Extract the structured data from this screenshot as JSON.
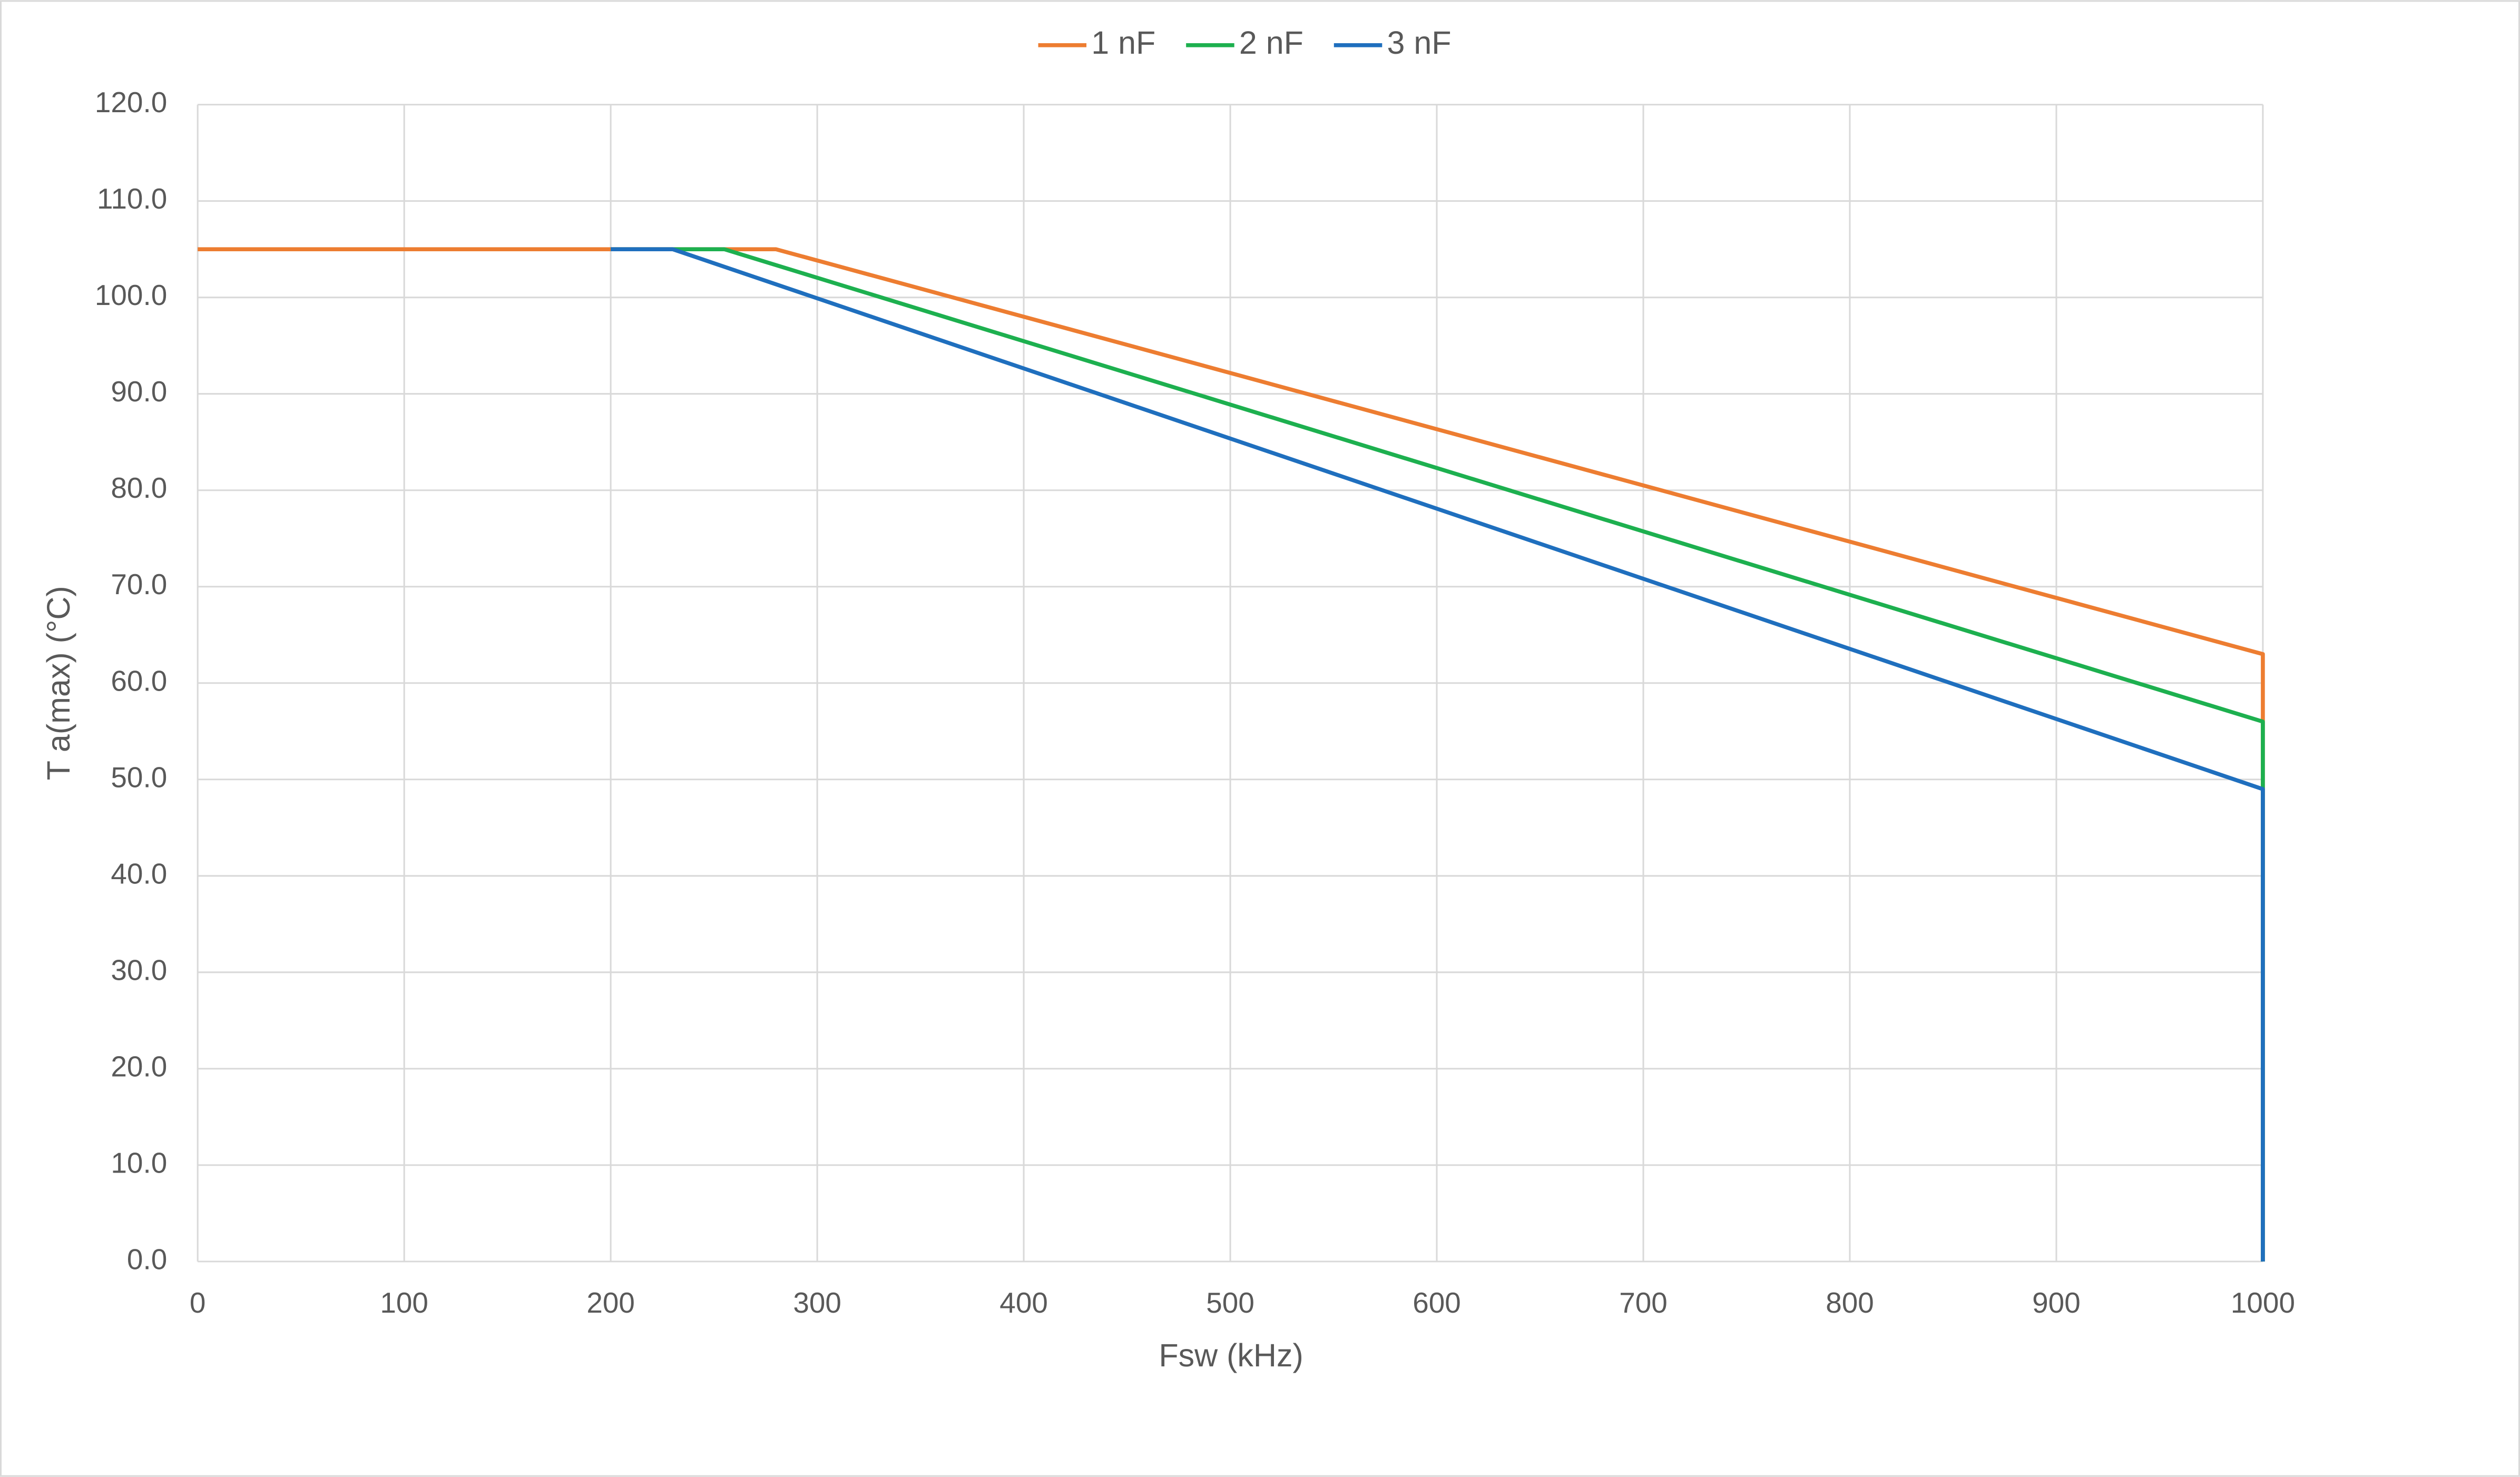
{
  "chart_data": {
    "type": "line",
    "x_label": "Fsw (kHz)",
    "y_label": "T a(max)  (°C)",
    "xlim": [
      0,
      1000
    ],
    "xticks": [
      0,
      100,
      200,
      300,
      400,
      500,
      600,
      700,
      800,
      900,
      1000
    ],
    "ylim": [
      0,
      120
    ],
    "yticks": [
      {
        "value": 0,
        "label": "0.0"
      },
      {
        "value": 10,
        "label": "10.0"
      },
      {
        "value": 20,
        "label": "20.0"
      },
      {
        "value": 30,
        "label": "30.0"
      },
      {
        "value": 40,
        "label": "40.0"
      },
      {
        "value": 50,
        "label": "50.0"
      },
      {
        "value": 60,
        "label": "60.0"
      },
      {
        "value": 70,
        "label": "70.0"
      },
      {
        "value": 80,
        "label": "80.0"
      },
      {
        "value": 90,
        "label": "90.0"
      },
      {
        "value": 100,
        "label": "100.0"
      },
      {
        "value": 110,
        "label": "110.0"
      },
      {
        "value": 120,
        "label": "120.0"
      }
    ],
    "grid": true,
    "legend": "top",
    "series": [
      {
        "name": "1 nF",
        "color": "#ED7D31",
        "x": [
          0,
          280,
          1000,
          1000
        ],
        "values": [
          105,
          105,
          63,
          0
        ]
      },
      {
        "name": "2 nF",
        "color": "#1DB04F",
        "x": [
          200,
          255,
          1000,
          1000
        ],
        "values": [
          105,
          105,
          56,
          0
        ]
      },
      {
        "name": "3 nF",
        "color": "#1F6FBE",
        "x": [
          200,
          230,
          1000,
          1000
        ],
        "values": [
          105,
          105,
          49,
          0
        ]
      }
    ]
  }
}
